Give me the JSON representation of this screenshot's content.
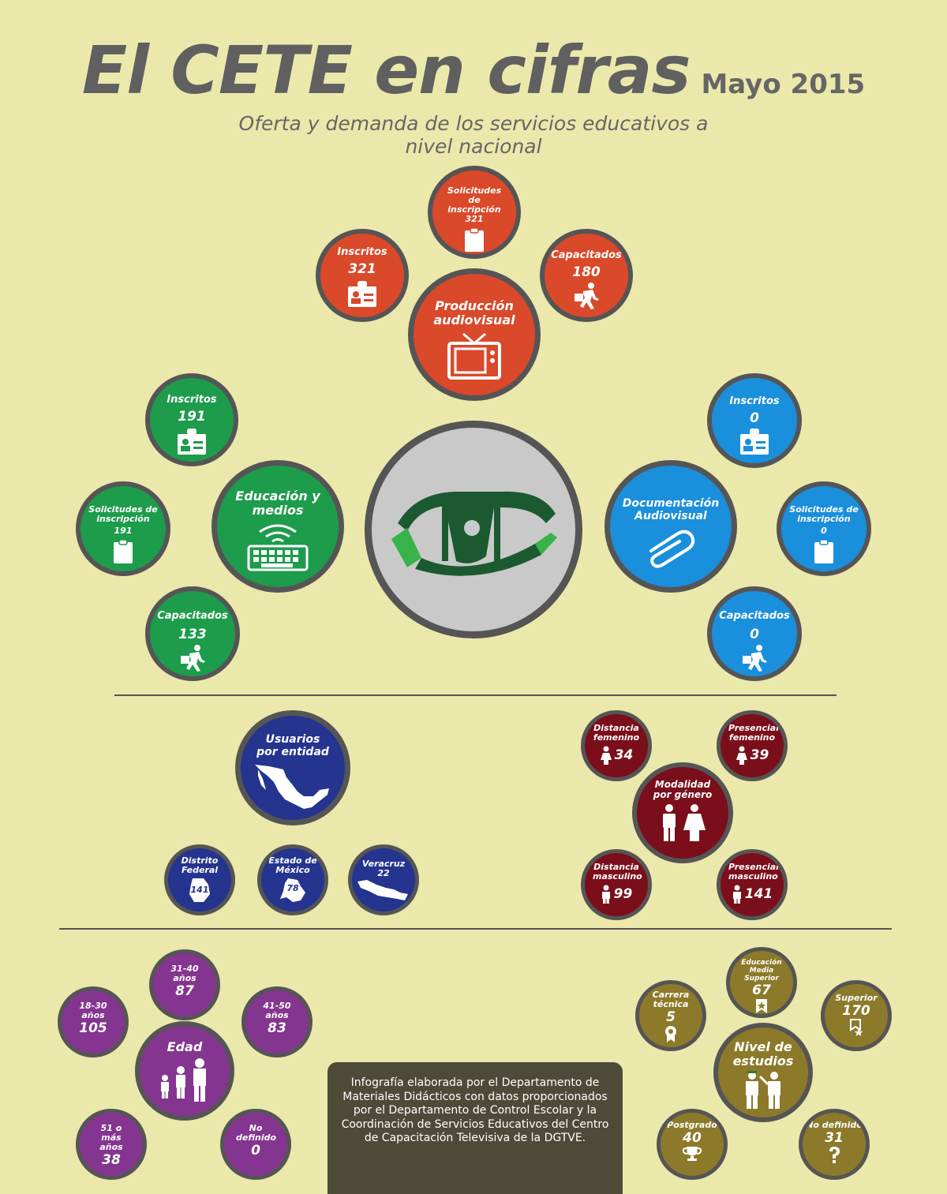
{
  "title": "El CETE en cifras",
  "date": "Mayo 2015",
  "subtitle": "Oferta y demanda de los servicios educativos a nivel nacional",
  "colors": {
    "background": "#ebe8ab",
    "orange": "#d9492a",
    "green": "#1d9c4c",
    "blue": "#1a8fdc",
    "navy": "#24348f",
    "maroon": "#7a0e1a",
    "purple": "#84358f",
    "olive": "#8c7a2a"
  },
  "produccion": {
    "title": "Producción audiovisual",
    "solicitudes_label": "Solicitudes de inscripción",
    "solicitudes": "321",
    "inscritos_label": "Inscritos",
    "inscritos": "321",
    "capacitados_label": "Capacitados",
    "capacitados": "180"
  },
  "educacion": {
    "title": "Educación y medios",
    "inscritos_label": "Inscritos",
    "inscritos": "191",
    "solicitudes_label": "Solicitudes de inscripción",
    "solicitudes": "191",
    "capacitados_label": "Capacitados",
    "capacitados": "133"
  },
  "documentacion": {
    "title": "Documentación Audiovisual",
    "inscritos_label": "Inscritos",
    "inscritos": "0",
    "solicitudes_label": "Solicitudes de inscripción",
    "solicitudes": "0",
    "capacitados_label": "Capacitados",
    "capacitados": "0"
  },
  "usuarios": {
    "title": "Usuarios por entidad",
    "df_label": "Distrito Federal",
    "df": "141",
    "edomex_label": "Estado de México",
    "edomex": "78",
    "veracruz_label": "Veracruz",
    "veracruz": "22"
  },
  "genero": {
    "title": "Modalidad por género",
    "dist_fem_label": "Distancia femenino",
    "dist_fem": "34",
    "pres_fem_label": "Presencial femenino",
    "pres_fem": "39",
    "dist_masc_label": "Distancia masculino",
    "dist_masc": "99",
    "pres_masc_label": "Presencial masculino",
    "pres_masc": "141"
  },
  "edad": {
    "title": "Edad",
    "g18_label": "18-30 años",
    "g18": "105",
    "g31_label": "31-40 años",
    "g31": "87",
    "g41_label": "41-50 años",
    "g41": "83",
    "g51_label": "51 o más años",
    "g51": "38",
    "nd_label": "No definido",
    "nd": "0"
  },
  "estudios": {
    "title": "Nivel de estudios",
    "tecnica_label": "Carrera técnica",
    "tecnica": "5",
    "media_label": "Educación Media Superior",
    "media": "67",
    "superior_label": "Superior",
    "superior": "170",
    "posgrado_label": "Postgrado",
    "posgrado": "40",
    "nd_label": "No definido",
    "nd": "31"
  },
  "note": "Infografía elaborada por el Departamento de Materiales Didácticos con datos proporcionados por el Departamento de Control Escolar y la Coordinación de Servicios Educativos del Centro de Capacitación Televisiva de la DGTVE."
}
